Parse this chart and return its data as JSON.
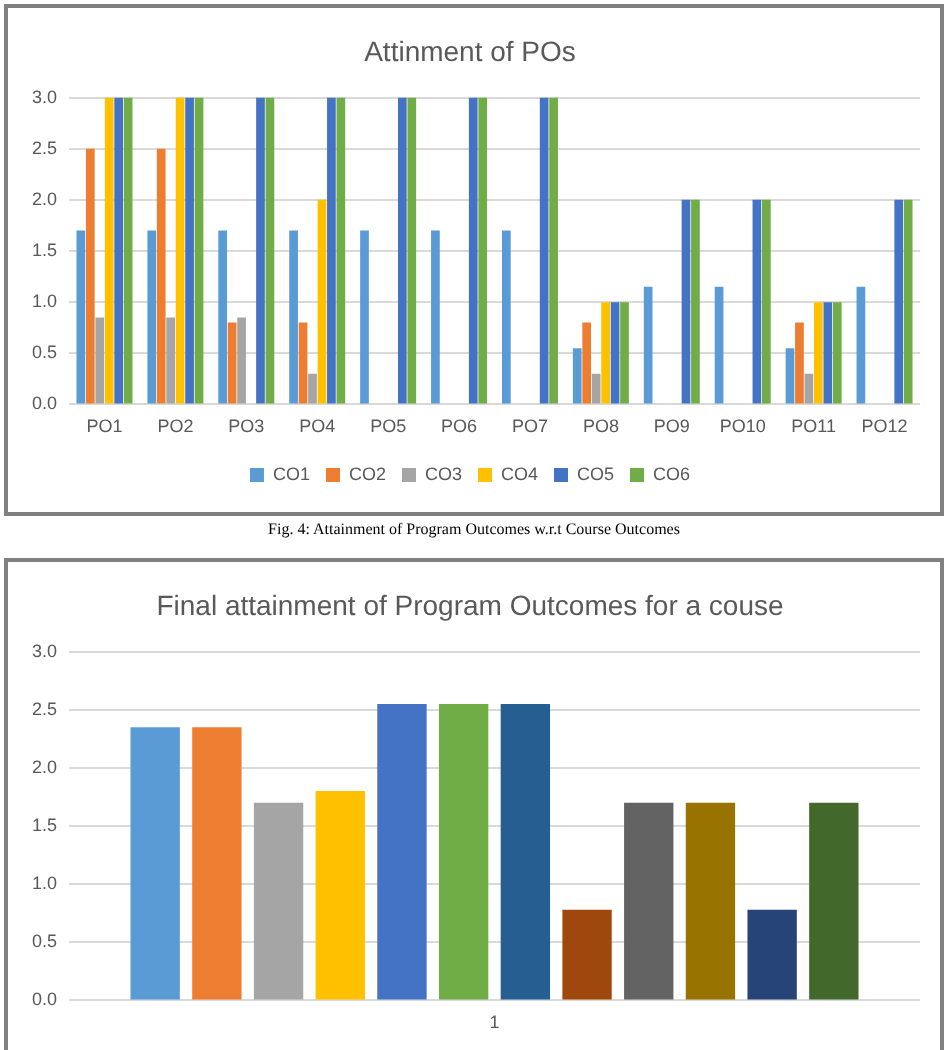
{
  "chart_data": [
    {
      "type": "bar",
      "title": "Attinment of POs",
      "categories": [
        "PO1",
        "PO2",
        "PO3",
        "PO4",
        "PO5",
        "PO6",
        "PO7",
        "PO8",
        "PO9",
        "PO10",
        "PO11",
        "PO12"
      ],
      "series": [
        {
          "name": "CO1",
          "color": "#5b9bd5",
          "values": [
            1.7,
            1.7,
            1.7,
            1.7,
            1.7,
            1.7,
            1.7,
            0.55,
            1.15,
            1.15,
            0.55,
            1.15
          ]
        },
        {
          "name": "CO2",
          "color": "#ed7d31",
          "values": [
            2.5,
            2.5,
            0.8,
            0.8,
            0,
            0,
            0,
            0.8,
            0,
            0,
            0.8,
            0
          ]
        },
        {
          "name": "CO3",
          "color": "#a5a5a5",
          "values": [
            0.85,
            0.85,
            0.85,
            0.3,
            0,
            0,
            0,
            0.3,
            0,
            0,
            0.3,
            0
          ]
        },
        {
          "name": "CO4",
          "color": "#ffc000",
          "values": [
            3,
            3,
            0,
            2,
            0,
            0,
            0,
            1,
            0,
            0,
            1,
            0
          ]
        },
        {
          "name": "CO5",
          "color": "#4472c4",
          "values": [
            3,
            3,
            3,
            3,
            3,
            3,
            3,
            1,
            2,
            2,
            1,
            2
          ]
        },
        {
          "name": "CO6",
          "color": "#70ad47",
          "values": [
            3,
            3,
            3,
            3,
            3,
            3,
            3,
            1,
            2,
            2,
            1,
            2
          ]
        }
      ],
      "ylim": [
        0,
        3
      ],
      "yticks": [
        {
          "value": 0,
          "label": "0.0"
        },
        {
          "value": 0.5,
          "label": "0.5"
        },
        {
          "value": 1,
          "label": "1.0"
        },
        {
          "value": 1.5,
          "label": "1.5"
        },
        {
          "value": 2,
          "label": "2.0"
        },
        {
          "value": 2.5,
          "label": "2.5"
        },
        {
          "value": 3,
          "label": "3.0"
        }
      ],
      "grid": "y",
      "legend": "bottom",
      "annotations": [
        "Fig. 4: Attainment of Program Outcomes w.r.t Course Outcomes"
      ]
    },
    {
      "type": "bar",
      "title": "Final attainment of Program Outcomes for a couse",
      "categories": [
        "1"
      ],
      "series": [
        {
          "color": "#5b9bd5",
          "values": [
            2.35
          ]
        },
        {
          "color": "#ed7d31",
          "values": [
            2.35
          ]
        },
        {
          "color": "#a5a5a5",
          "values": [
            1.7
          ]
        },
        {
          "color": "#ffc000",
          "values": [
            1.8
          ]
        },
        {
          "color": "#4472c4",
          "values": [
            2.55
          ]
        },
        {
          "color": "#70ad47",
          "values": [
            2.55
          ]
        },
        {
          "color": "#255e91",
          "values": [
            2.55
          ]
        },
        {
          "color": "#9e480e",
          "values": [
            0.78
          ]
        },
        {
          "color": "#636363",
          "values": [
            1.7
          ]
        },
        {
          "color": "#997300",
          "values": [
            1.7
          ]
        },
        {
          "color": "#264478",
          "values": [
            0.78
          ]
        },
        {
          "color": "#43682b",
          "values": [
            1.7
          ]
        }
      ],
      "ylim": [
        0,
        3
      ],
      "yticks": [
        {
          "value": 0,
          "label": "0.0"
        },
        {
          "value": 0.5,
          "label": "0.5"
        },
        {
          "value": 1,
          "label": "1.0"
        },
        {
          "value": 1.5,
          "label": "1.5"
        },
        {
          "value": 2,
          "label": "2.0"
        },
        {
          "value": 2.5,
          "label": "2.5"
        },
        {
          "value": 3,
          "label": "3.0"
        }
      ],
      "grid": "y"
    }
  ]
}
